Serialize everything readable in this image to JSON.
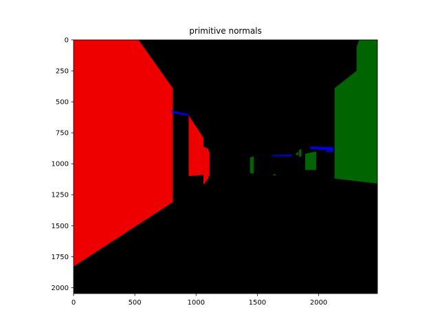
{
  "chart_data": {
    "type": "image",
    "title": "primitive normals",
    "xlabel": "",
    "ylabel": "",
    "xlim": [
      0,
      2480
    ],
    "ylim": [
      2048,
      0
    ],
    "xticks": [
      0,
      500,
      1000,
      1500,
      2000
    ],
    "yticks": [
      0,
      250,
      500,
      750,
      1000,
      1250,
      1500,
      1750,
      2000
    ],
    "grid": false,
    "background_color": "#000000",
    "regions": [
      {
        "name": "left-wall",
        "color": "#ee0000",
        "points": [
          [
            0,
            0
          ],
          [
            530,
            0
          ],
          [
            810,
            390
          ],
          [
            810,
            1310
          ],
          [
            0,
            1830
          ]
        ]
      },
      {
        "name": "left-wall-segment-2",
        "color": "#ee0000",
        "points": [
          [
            940,
            610
          ],
          [
            1060,
            790
          ],
          [
            1060,
            1090
          ],
          [
            940,
            1100
          ]
        ]
      },
      {
        "name": "left-wall-segment-3",
        "color": "#ee0000",
        "points": [
          [
            1060,
            860
          ],
          [
            1100,
            880
          ],
          [
            1100,
            1120
          ],
          [
            1060,
            1170
          ]
        ]
      },
      {
        "name": "left-wall-segment-4",
        "color": "#ee0000",
        "points": [
          [
            1070,
            890
          ],
          [
            1110,
            900
          ],
          [
            1110,
            1100
          ],
          [
            1070,
            1110
          ]
        ]
      },
      {
        "name": "ceiling-strip-left",
        "color": "#0000dd",
        "points": [
          [
            800,
            570
          ],
          [
            940,
            600
          ],
          [
            940,
            615
          ],
          [
            800,
            590
          ]
        ]
      },
      {
        "name": "ceiling-strip-center",
        "color": "#0000dd",
        "points": [
          [
            1620,
            930
          ],
          [
            1780,
            925
          ],
          [
            1780,
            940
          ],
          [
            1620,
            940
          ]
        ]
      },
      {
        "name": "ceiling-strip-right",
        "color": "#0000dd",
        "points": [
          [
            1930,
            860
          ],
          [
            2120,
            865
          ],
          [
            2120,
            895
          ],
          [
            1930,
            880
          ]
        ]
      },
      {
        "name": "ceiling-strip-right-small",
        "color": "#0000dd",
        "points": [
          [
            2060,
            895
          ],
          [
            2120,
            895
          ],
          [
            2120,
            905
          ],
          [
            2060,
            905
          ]
        ]
      },
      {
        "name": "right-wall",
        "color": "#006400",
        "points": [
          [
            2330,
            0
          ],
          [
            2480,
            0
          ],
          [
            2480,
            1160
          ],
          [
            2130,
            1120
          ],
          [
            2130,
            390
          ],
          [
            2310,
            250
          ],
          [
            2310,
            60
          ]
        ]
      },
      {
        "name": "right-wall-segment-2",
        "color": "#006400",
        "points": [
          [
            1890,
            920
          ],
          [
            1980,
            900
          ],
          [
            1980,
            1050
          ],
          [
            1890,
            1050
          ]
        ]
      },
      {
        "name": "right-wall-segment-3",
        "color": "#006400",
        "points": [
          [
            1840,
            890
          ],
          [
            1860,
            880
          ],
          [
            1860,
            940
          ],
          [
            1840,
            945
          ]
        ]
      },
      {
        "name": "right-wall-segment-4",
        "color": "#006400",
        "points": [
          [
            1815,
            915
          ],
          [
            1835,
            905
          ],
          [
            1835,
            930
          ],
          [
            1815,
            930
          ]
        ]
      },
      {
        "name": "right-wall-segment-5",
        "color": "#006400",
        "points": [
          [
            1440,
            950
          ],
          [
            1470,
            940
          ],
          [
            1470,
            1080
          ],
          [
            1440,
            1075
          ]
        ]
      },
      {
        "name": "right-wall-segment-6",
        "color": "#006400",
        "points": [
          [
            1630,
            1085
          ],
          [
            1650,
            1085
          ],
          [
            1650,
            1095
          ],
          [
            1630,
            1095
          ]
        ]
      }
    ]
  }
}
